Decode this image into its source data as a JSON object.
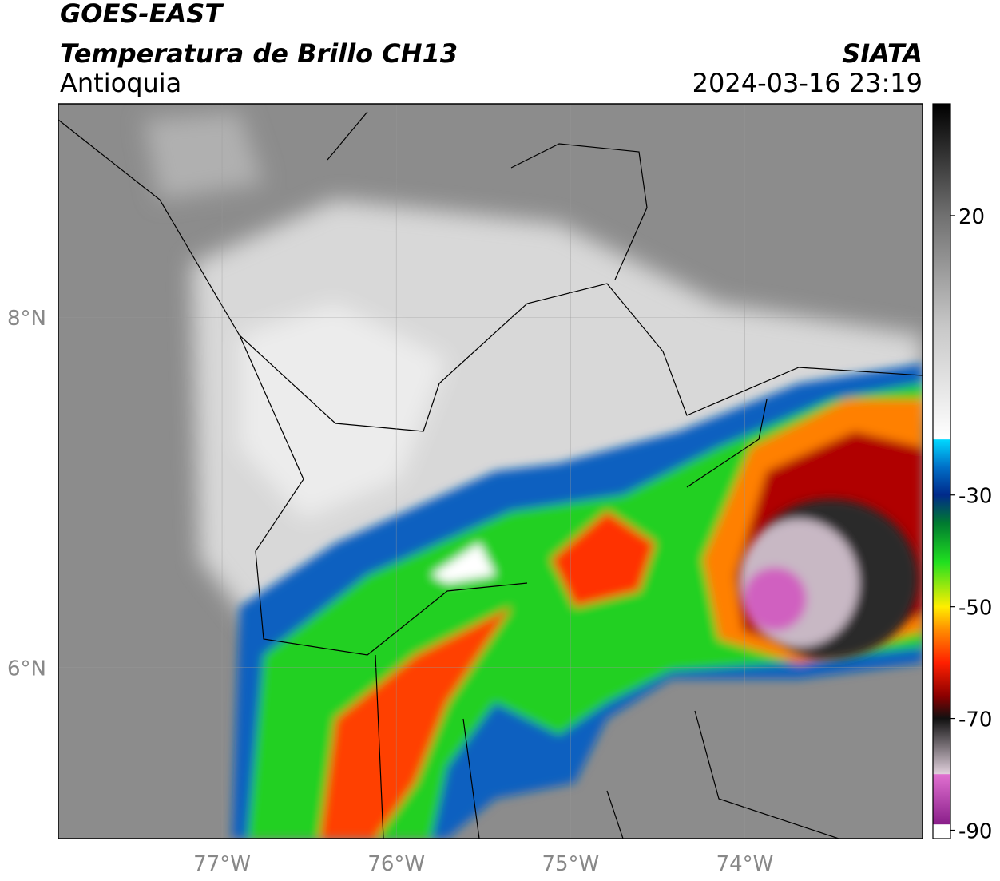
{
  "header": {
    "title": "GOES-EAST",
    "subtitle": "Temperatura de Brillo CH13",
    "region": "Antioquia",
    "source": "SIATA",
    "datetime": "2024-03-16 23:19"
  },
  "map": {
    "xlim": [
      -77.94,
      -72.98
    ],
    "ylim": [
      5.02,
      9.22
    ],
    "xticks": [
      {
        "value": -77,
        "label": "77°W"
      },
      {
        "value": -76,
        "label": "76°W"
      },
      {
        "value": -75,
        "label": "75°W"
      },
      {
        "value": -74,
        "label": "74°W"
      }
    ],
    "yticks": [
      {
        "value": 8,
        "label": "8°N"
      },
      {
        "value": 6,
        "label": "6°N"
      }
    ],
    "grid": true
  },
  "colorbar": {
    "lim": [
      -91.5,
      40
    ],
    "ticks": [
      20,
      -30,
      -50,
      -70,
      -90
    ],
    "colormap": [
      {
        "value": -91.5,
        "color": "#ffffff"
      },
      {
        "value": -89,
        "color": "#ffffff"
      },
      {
        "value": -88.9,
        "color": "#8a1f8a"
      },
      {
        "value": -80,
        "color": "#e070d0"
      },
      {
        "value": -79.9,
        "color": "#e0d0dc"
      },
      {
        "value": -70,
        "color": "#111111"
      },
      {
        "value": -66,
        "color": "#8b0000"
      },
      {
        "value": -60,
        "color": "#ff2000"
      },
      {
        "value": -54,
        "color": "#ff9000"
      },
      {
        "value": -50,
        "color": "#ffee00"
      },
      {
        "value": -42,
        "color": "#20e020"
      },
      {
        "value": -35,
        "color": "#007a30"
      },
      {
        "value": -30,
        "color": "#002a8a"
      },
      {
        "value": -25,
        "color": "#0070c8"
      },
      {
        "value": -20.1,
        "color": "#00d8ff"
      },
      {
        "value": -20,
        "color": "#ffffff"
      },
      {
        "value": 0,
        "color": "#c8c8c8"
      },
      {
        "value": 20,
        "color": "#707070"
      },
      {
        "value": 40,
        "color": "#000000"
      }
    ]
  }
}
